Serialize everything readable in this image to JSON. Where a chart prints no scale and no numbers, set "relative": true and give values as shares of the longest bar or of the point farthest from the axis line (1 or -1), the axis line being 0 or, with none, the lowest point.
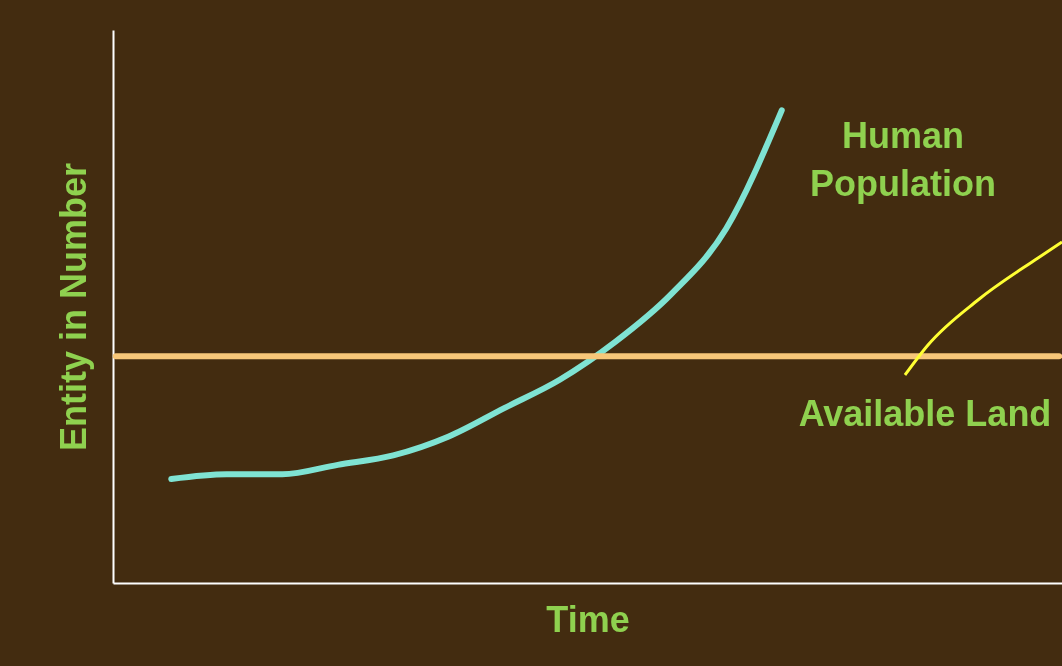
{
  "chart_data": {
    "type": "line",
    "relative": true,
    "xlabel": "Time",
    "ylabel": "Entity in Number",
    "legend": false,
    "grid": false,
    "tick_labels": false,
    "marker": "none",
    "line_style": "solid",
    "categories": [
      null,
      null,
      null,
      null,
      null,
      null,
      null,
      null,
      null,
      null,
      null,
      null,
      null,
      null,
      null,
      null,
      null,
      null
    ],
    "series": [
      {
        "name": "Human Population",
        "color": "#7fe3d3",
        "values": [
          null,
          0.22,
          0.23,
          0.23,
          0.25,
          0.27,
          0.31,
          0.37,
          0.43,
          0.51,
          0.61,
          0.75,
          1.0,
          null,
          null,
          null,
          null,
          null
        ]
      },
      {
        "name": "Available Land",
        "color": "#f7c779",
        "values": [
          0.48,
          0.48,
          0.48,
          0.48,
          0.48,
          0.48,
          0.48,
          0.48,
          0.48,
          0.48,
          0.48,
          0.48,
          0.48,
          0.48,
          0.48,
          0.48,
          0.48,
          0.48
        ]
      }
    ]
  }
}
